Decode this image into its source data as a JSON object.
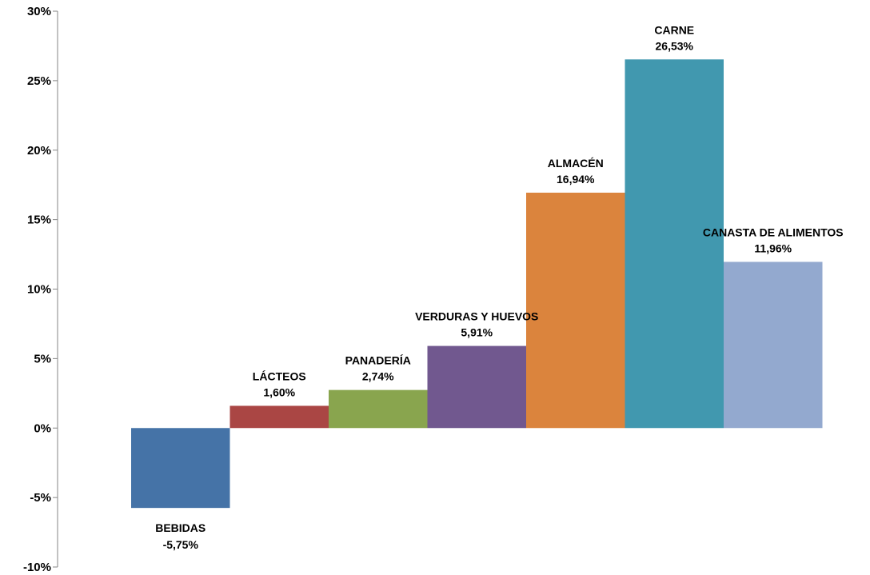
{
  "chart_data": {
    "type": "bar",
    "title": "",
    "xlabel": "",
    "ylabel": "",
    "ylim": [
      -10,
      30
    ],
    "yticks": [
      -10,
      -5,
      0,
      5,
      10,
      15,
      20,
      25,
      30
    ],
    "ytick_labels": [
      "-10%",
      "-5%",
      "0%",
      "5%",
      "10%",
      "15%",
      "20%",
      "25%",
      "30%"
    ],
    "grid": false,
    "legend": "none",
    "bar_gap": 0,
    "categories": [
      "BEBIDAS",
      "LÁCTEOS",
      "PANADERÍA",
      "VERDURAS Y HUEVOS",
      "ALMACÉN",
      "CARNE",
      "CANASTA DE ALIMENTOS"
    ],
    "values": [
      -5.75,
      1.6,
      2.74,
      5.91,
      16.94,
      26.53,
      11.96
    ],
    "value_labels": [
      "-5,75%",
      "1,60%",
      "2,74%",
      "5,91%",
      "16,94%",
      "26,53%",
      "11,96%"
    ],
    "colors": [
      "#4573A7",
      "#AA4644",
      "#89A54E",
      "#71588F",
      "#DB843D",
      "#4198AF",
      "#93A9CF"
    ]
  }
}
